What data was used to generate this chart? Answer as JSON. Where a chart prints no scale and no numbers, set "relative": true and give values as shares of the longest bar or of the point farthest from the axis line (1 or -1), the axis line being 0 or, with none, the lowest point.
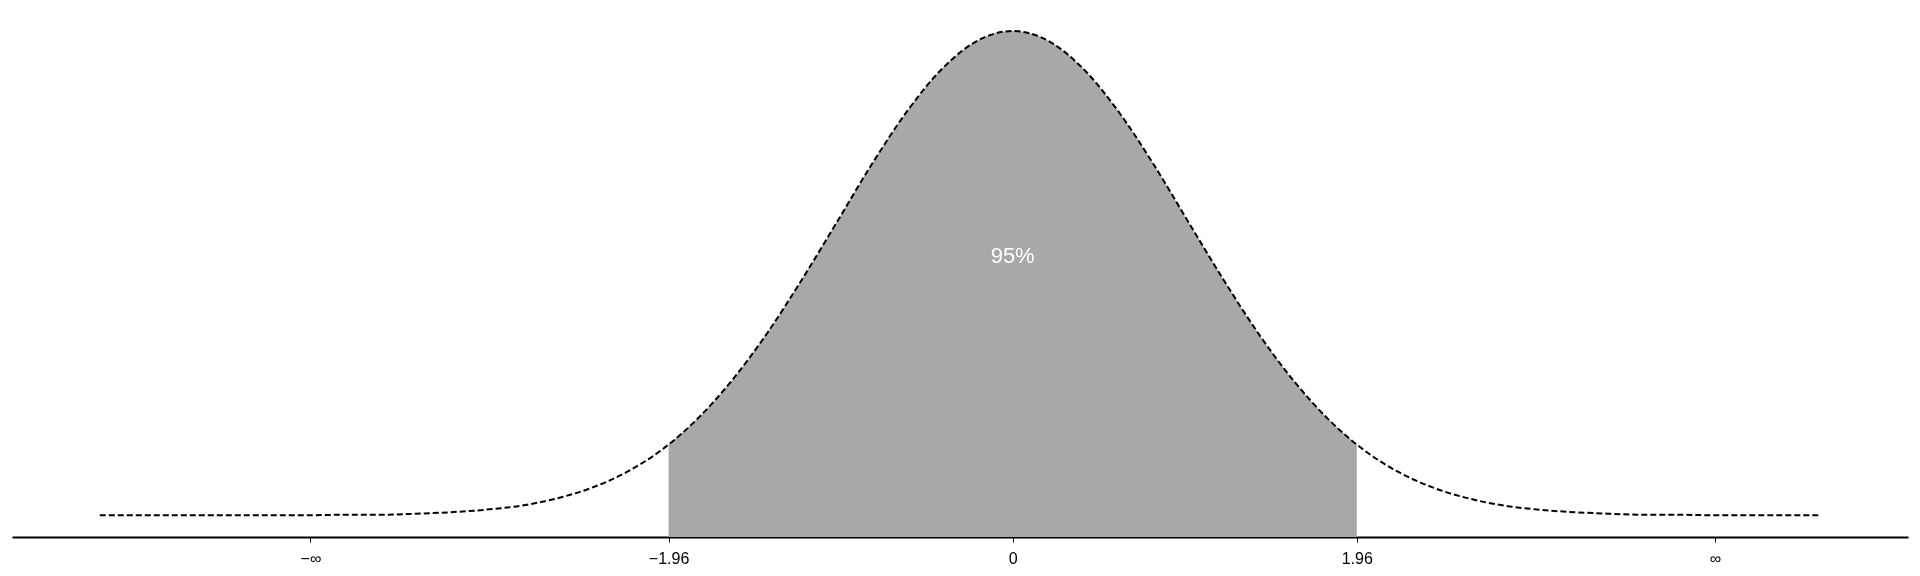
{
  "chart_data": {
    "type": "line",
    "relative": true,
    "xlim": [
      -5.7,
      5.1
    ],
    "xticks": [
      {
        "value": -4,
        "label": "−∞"
      },
      {
        "value": -1.96,
        "label": "−1.96"
      },
      0,
      {
        "value": 1.96,
        "label": "1.96"
      },
      {
        "value": 4,
        "label": "∞"
      }
    ],
    "grid": false,
    "series": [
      {
        "type": "area",
        "color": "#a8a8a8",
        "x": [
          -1.96,
          -1.8,
          -1.6,
          -1.4,
          -1.2,
          -1.0,
          -0.8,
          -0.6,
          -0.4,
          -0.2,
          0,
          0.2,
          0.4,
          0.6,
          0.8,
          1.0,
          1.2,
          1.4,
          1.6,
          1.8,
          1.96
        ],
        "values": [
          0.183,
          0.232,
          0.309,
          0.402,
          0.509,
          0.623,
          0.738,
          0.842,
          0.926,
          0.981,
          1.0,
          0.981,
          0.926,
          0.842,
          0.738,
          0.623,
          0.509,
          0.402,
          0.309,
          0.232,
          0.183
        ]
      },
      {
        "color": "#000000",
        "line_style": "dashed",
        "x": [
          -5.2,
          -4.8,
          -4.4,
          -4.0,
          -3.8,
          -3.6,
          -3.4,
          -3.2,
          -3.0,
          -2.8,
          -2.6,
          -2.4,
          -2.2,
          -2.0,
          -1.8,
          -1.6,
          -1.4,
          -1.2,
          -1.0,
          -0.8,
          -0.6,
          -0.4,
          -0.2,
          0,
          0.2,
          0.4,
          0.6,
          0.8,
          1.0,
          1.2,
          1.4,
          1.6,
          1.8,
          2.0,
          2.2,
          2.4,
          2.6,
          2.8,
          3.0,
          3.2,
          3.4,
          3.6,
          3.8,
          4.0,
          4.3,
          4.6
        ],
        "values": [
          0.043,
          0.043,
          0.043,
          0.043,
          0.044,
          0.044,
          0.046,
          0.049,
          0.054,
          0.062,
          0.076,
          0.097,
          0.128,
          0.172,
          0.232,
          0.309,
          0.402,
          0.509,
          0.623,
          0.738,
          0.842,
          0.926,
          0.981,
          1.0,
          0.981,
          0.926,
          0.842,
          0.738,
          0.623,
          0.509,
          0.402,
          0.309,
          0.232,
          0.172,
          0.128,
          0.097,
          0.076,
          0.062,
          0.054,
          0.049,
          0.046,
          0.044,
          0.044,
          0.043,
          0.043,
          0.043
        ]
      }
    ],
    "annotations": [
      "95%"
    ]
  }
}
